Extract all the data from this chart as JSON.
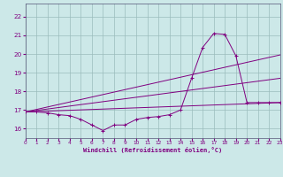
{
  "xlabel": "Windchill (Refroidissement éolien,°C)",
  "xlim": [
    0,
    23
  ],
  "ylim": [
    15.5,
    22.7
  ],
  "yticks": [
    16,
    17,
    18,
    19,
    20,
    21,
    22
  ],
  "xticks": [
    0,
    1,
    2,
    3,
    4,
    5,
    6,
    7,
    8,
    9,
    10,
    11,
    12,
    13,
    14,
    15,
    16,
    17,
    18,
    19,
    20,
    21,
    22,
    23
  ],
  "bg_color": "#cce8e8",
  "grid_color": "#9bbcbc",
  "line_color": "#800080",
  "series1_x": [
    0,
    1,
    2,
    3,
    4,
    5,
    6,
    7,
    8,
    9,
    10,
    11,
    12,
    13,
    14,
    15,
    16,
    17,
    18,
    19,
    20,
    21,
    22,
    23
  ],
  "series1_y": [
    16.9,
    16.9,
    16.85,
    16.75,
    16.7,
    16.5,
    16.2,
    15.9,
    16.2,
    16.2,
    16.5,
    16.6,
    16.65,
    16.75,
    17.0,
    18.7,
    20.35,
    21.1,
    21.05,
    19.9,
    17.4,
    17.4,
    17.4,
    17.4
  ],
  "line1_x": [
    0,
    23
  ],
  "line1_y": [
    16.9,
    19.95
  ],
  "line2_x": [
    0,
    23
  ],
  "line2_y": [
    16.9,
    18.7
  ],
  "line3_x": [
    0,
    23
  ],
  "line3_y": [
    16.9,
    17.4
  ]
}
